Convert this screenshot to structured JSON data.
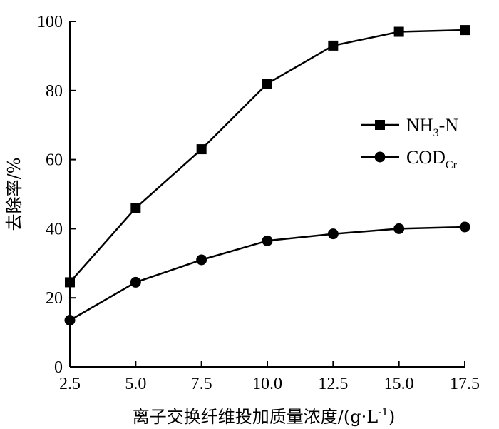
{
  "chart_data": {
    "type": "line",
    "title": "",
    "xlabel": "离子交换纤维投加质量浓度/(g·L",
    "xlabel_sup": "-1",
    "xlabel_close": ")",
    "ylabel": "去除率/%",
    "xlim": [
      2.5,
      17.5
    ],
    "ylim": [
      0,
      100
    ],
    "x": [
      2.5,
      5.0,
      7.5,
      10.0,
      12.5,
      15.0,
      17.5
    ],
    "x_tick_labels": [
      "2.5",
      "5.0",
      "7.5",
      "10.0",
      "12.5",
      "15.0",
      "17.5"
    ],
    "y_ticks": [
      0,
      20,
      40,
      60,
      80,
      100
    ],
    "y_tick_labels": [
      "0",
      "20",
      "40",
      "60",
      "80",
      "100"
    ],
    "grid": false,
    "legend_position": "right",
    "series": [
      {
        "name": "NH3-N",
        "name_main": "NH",
        "name_sub": "3",
        "name_tail": "-N",
        "marker": "square",
        "values": [
          24.5,
          46,
          63,
          82,
          93,
          97,
          97.5
        ]
      },
      {
        "name": "CODCr",
        "name_main": "COD",
        "name_sub": "Cr",
        "name_tail": "",
        "marker": "circle",
        "values": [
          13.5,
          24.5,
          31,
          36.5,
          38.5,
          40,
          40.5
        ]
      }
    ]
  }
}
